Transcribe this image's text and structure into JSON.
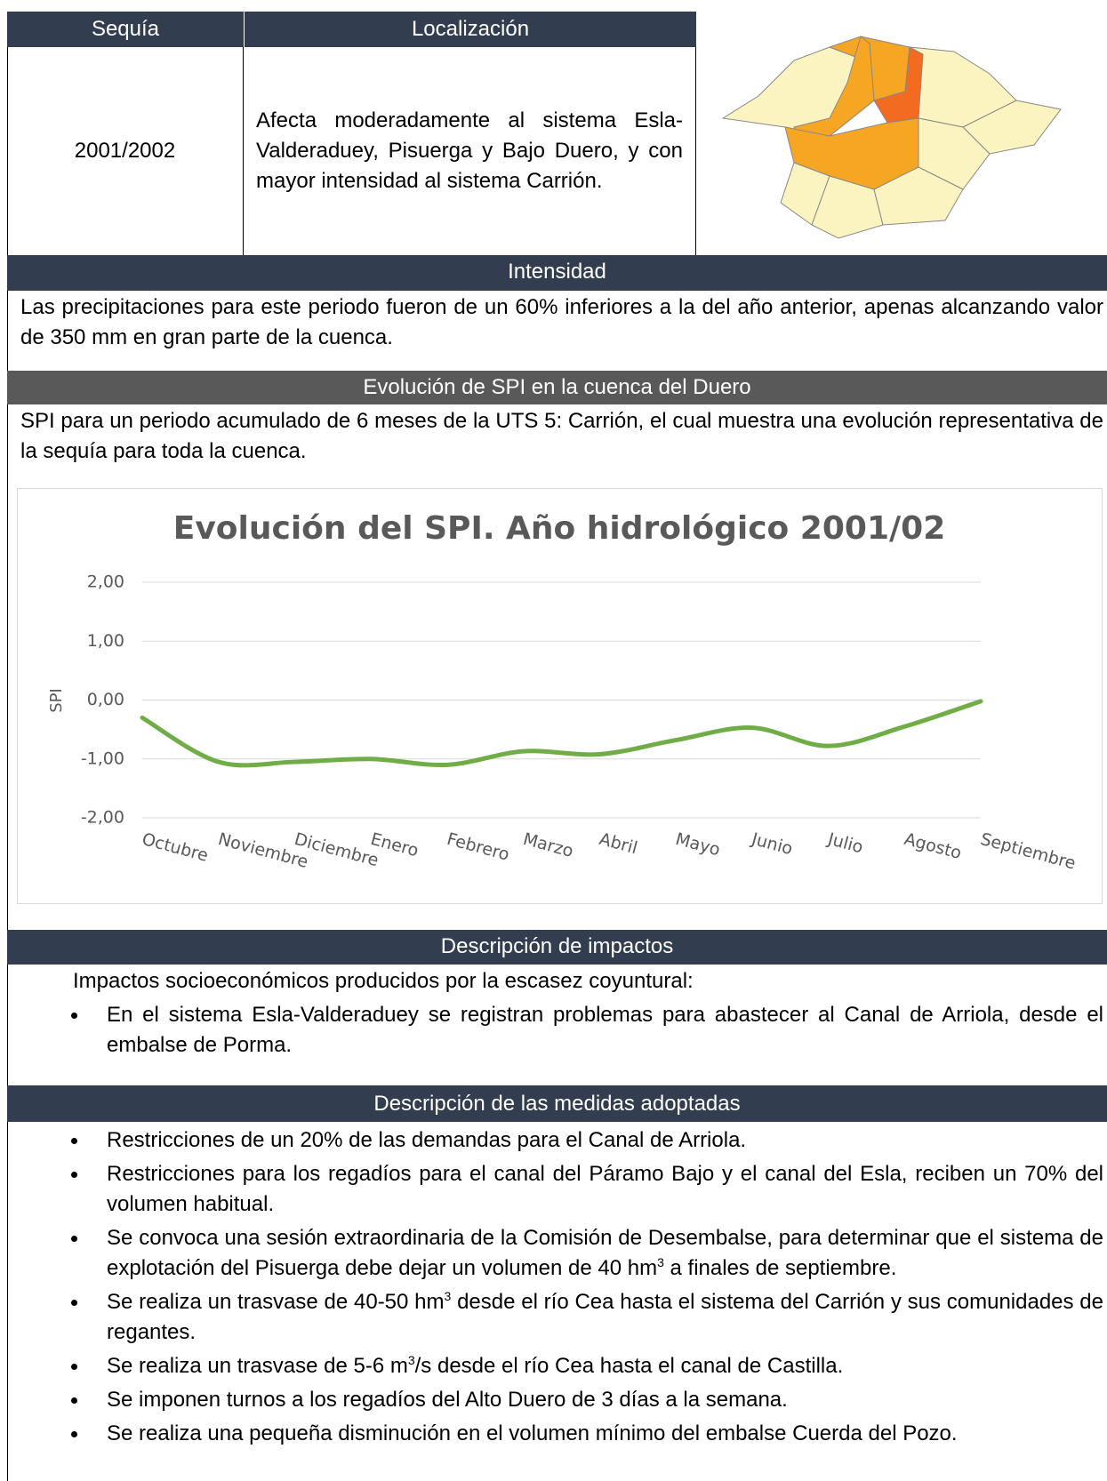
{
  "header": {
    "columns": [
      "Sequía",
      "Localización"
    ],
    "period": "2001/2002",
    "location": "Afecta moderadamente al sistema Esla-Valderaduey, Pisuerga y Bajo Duero, y con mayor intensidad al sistema Carrión."
  },
  "sections": [
    {
      "title": "Intensidad",
      "text": "Las precipitaciones para este periodo fueron de un 60% inferiores a la del año anterior, apenas alcanzando valor de 350 mm en gran parte de la cuenca."
    },
    {
      "title": "Evolución de SPI en la cuenca del Duero",
      "text": "SPI para un periodo acumulado de 6 meses de la UTS 5: Carrión, el cual muestra una evolución representativa de la sequía para toda la cuenca."
    }
  ],
  "chart_data": {
    "type": "line",
    "title": "Evolución del SPI. Año hidrológico 2001/02",
    "y_label": "SPI",
    "categories": [
      "Octubre",
      "Noviembre",
      "Diciembre",
      "Enero",
      "Febrero",
      "Marzo",
      "Abril",
      "Mayo",
      "Junio",
      "Julio",
      "Agosto",
      "Septiembre"
    ],
    "series": [
      {
        "name": "SPI",
        "color": "#70ad47",
        "values": [
          -0.3,
          -1.05,
          -1.05,
          -1.0,
          -1.1,
          -0.87,
          -0.92,
          -0.68,
          -0.47,
          -0.78,
          -0.45,
          -0.02
        ]
      }
    ],
    "ylim": [
      -2,
      2
    ],
    "yticks": [
      {
        "value": -2,
        "label": "-2,00"
      },
      {
        "value": -1,
        "label": "-1,00"
      },
      {
        "value": 0,
        "label": "0,00"
      },
      {
        "value": 1,
        "label": "1,00"
      },
      {
        "value": 2,
        "label": "2,00"
      }
    ],
    "grid": true
  },
  "impacts": {
    "title": "Descripción de impactos",
    "intro": "Impactos socioeconómicos producidos por la escasez coyuntural:",
    "items": [
      "En el sistema Esla-Valderaduey se registran problemas para abastecer al Canal de Arriola, desde el embalse de Porma."
    ]
  },
  "measures": {
    "title": "Descripción de las medidas adoptadas",
    "items": [
      "Restricciones de un 20% de las demandas para el Canal de Arriola.",
      "Restricciones para los regadíos para el canal del Páramo Bajo y el canal del Esla, reciben un 70% del volumen habitual.",
      [
        "Se convoca una sesión extraordinaria de la Comisión de Desembalse, para determinar que el sistema de explotación del Pisuerga debe dejar un volumen de 40 hm",
        "3",
        " a finales de septiembre."
      ],
      [
        "Se realiza un trasvase de 40-50 hm",
        "3",
        " desde el río Cea hasta el sistema del Carrión y sus comunidades de regantes."
      ],
      [
        "Se realiza un trasvase de 5-6 m",
        "3",
        "/s desde el río Cea hasta el canal de Castilla."
      ],
      "Se imponen turnos a los regadíos del Alto Duero de 3 días a la semana.",
      "Se realiza una pequeña disminución en el volumen mínimo del embalse Cuerda del Pozo."
    ]
  }
}
